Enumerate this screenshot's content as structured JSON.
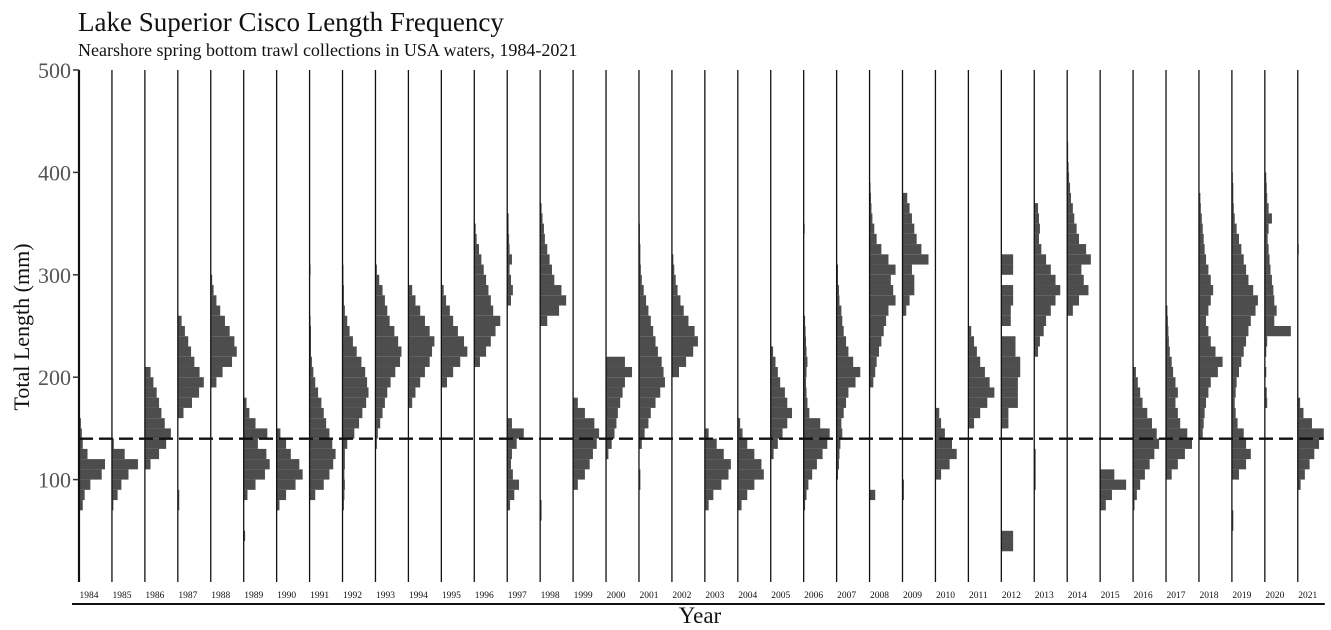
{
  "chart_data": {
    "type": "histogram",
    "title": "Lake Superior Cisco Length Frequency",
    "subtitle": "Nearshore spring bottom trawl collections in USA waters, 1984-2021",
    "xlabel": "Year",
    "ylabel": "Total Length (mm)",
    "ylim": [
      0,
      500
    ],
    "yticks": [
      100,
      200,
      300,
      400,
      500
    ],
    "reference_line": 140,
    "bin_width": 10,
    "bar_color": "#4d4d4d",
    "years": [
      {
        "year": "1984",
        "bins": {
          "70": 0.8,
          "80": 1.2,
          "90": 2.4,
          "100": 4.8,
          "110": 5.5,
          "120": 1.8,
          "130": 0.8,
          "140": 0.6,
          "150": 0.4
        }
      },
      {
        "year": "1985",
        "bins": {
          "70": 0.3,
          "80": 1.2,
          "90": 2.0,
          "100": 3.5,
          "110": 5.5,
          "120": 2.7,
          "130": 0.4
        }
      },
      {
        "year": "1986",
        "bins": {
          "110": 1.2,
          "120": 3.0,
          "130": 4.5,
          "140": 5.5,
          "150": 4.2,
          "160": 3.5,
          "170": 3.0,
          "180": 2.5,
          "190": 1.8,
          "200": 1.2
        }
      },
      {
        "year": "1987",
        "bins": {
          "70": 0.3,
          "80": 0.3,
          "160": 1.2,
          "170": 3.0,
          "180": 4.5,
          "190": 5.5,
          "200": 4.6,
          "210": 3.5,
          "220": 2.8,
          "230": 2.2,
          "240": 1.5,
          "250": 0.8
        }
      },
      {
        "year": "1988",
        "bins": {
          "190": 1.2,
          "200": 2.5,
          "210": 4.5,
          "220": 5.5,
          "230": 5.0,
          "240": 4.0,
          "250": 3.0,
          "260": 2.0,
          "270": 1.2,
          "280": 0.6,
          "290": 0.3
        }
      },
      {
        "year": "1989",
        "bins": {
          "40": 0.3,
          "80": 0.8,
          "90": 2.5,
          "100": 4.5,
          "110": 5.5,
          "120": 4.8,
          "130": 3.0,
          "140": 5.0,
          "150": 2.5,
          "160": 1.2,
          "170": 0.6
        }
      },
      {
        "year": "1990",
        "bins": {
          "70": 0.6,
          "80": 2.0,
          "90": 4.0,
          "100": 5.5,
          "110": 4.8,
          "120": 3.0,
          "130": 2.0,
          "140": 0.8
        }
      },
      {
        "year": "1991",
        "bins": {
          "80": 1.2,
          "90": 3.0,
          "100": 4.2,
          "110": 5.0,
          "120": 5.5,
          "130": 4.8,
          "140": 4.2,
          "150": 3.5,
          "160": 3.0,
          "170": 2.5,
          "180": 1.8,
          "190": 1.2,
          "200": 0.8,
          "210": 0.5,
          "220": 0.3,
          "230": 0.3,
          "240": 0.3,
          "250": 0.2,
          "300": 0.2
        }
      },
      {
        "year": "1992",
        "bins": {
          "70": 0.3,
          "80": 0.4,
          "90": 0.5,
          "100": 0.4,
          "110": 0.5,
          "120": 0.5,
          "130": 1.0,
          "140": 2.5,
          "150": 3.5,
          "160": 4.2,
          "170": 5.0,
          "180": 5.5,
          "190": 5.2,
          "200": 4.8,
          "210": 4.0,
          "220": 3.0,
          "230": 2.2,
          "240": 1.5,
          "250": 1.0,
          "260": 0.5,
          "270": 0.3,
          "280": 0.3,
          "290": 0.2,
          "300": 0.2
        }
      },
      {
        "year": "1993",
        "bins": {
          "130": 0.3,
          "140": 0.5,
          "150": 1.0,
          "160": 1.5,
          "170": 2.0,
          "180": 2.5,
          "190": 3.2,
          "200": 4.2,
          "210": 5.2,
          "220": 5.5,
          "230": 4.8,
          "240": 4.0,
          "250": 3.0,
          "260": 2.5,
          "270": 2.0,
          "280": 1.5,
          "290": 0.8,
          "300": 0.3
        }
      },
      {
        "year": "1994",
        "bins": {
          "170": 0.8,
          "180": 1.5,
          "190": 2.5,
          "200": 3.5,
          "210": 4.5,
          "220": 5.0,
          "230": 5.5,
          "240": 4.5,
          "250": 3.5,
          "260": 2.5,
          "270": 1.5,
          "280": 0.8
        }
      },
      {
        "year": "1995",
        "bins": {
          "190": 1.2,
          "200": 2.5,
          "210": 4.0,
          "220": 5.5,
          "230": 4.8,
          "240": 3.5,
          "250": 2.5,
          "260": 1.8,
          "270": 1.0,
          "280": 0.5
        }
      },
      {
        "year": "1996",
        "bins": {
          "210": 1.2,
          "220": 2.5,
          "230": 3.5,
          "240": 4.5,
          "250": 5.5,
          "260": 4.0,
          "270": 3.5,
          "280": 3.0,
          "290": 2.5,
          "300": 2.0,
          "310": 1.5,
          "320": 1.0,
          "330": 0.5,
          "340": 0.3
        }
      },
      {
        "year": "1997",
        "bins": {
          "70": 0.6,
          "80": 1.5,
          "90": 2.5,
          "100": 1.2,
          "110": 0.8,
          "120": 1.0,
          "130": 2.0,
          "140": 3.5,
          "150": 1.0,
          "270": 0.8,
          "280": 1.2,
          "290": 0.8,
          "300": 0.5,
          "310": 1.0,
          "320": 0.5,
          "330": 0.4,
          "340": 0.3,
          "350": 0.3
        }
      },
      {
        "year": "1998",
        "bins": {
          "60": 0.3,
          "70": 0.3,
          "250": 1.5,
          "260": 4.0,
          "270": 5.5,
          "280": 4.5,
          "290": 3.0,
          "300": 2.5,
          "310": 2.0,
          "320": 1.5,
          "330": 1.0,
          "340": 0.8,
          "350": 0.5,
          "360": 0.3
        }
      },
      {
        "year": "1999",
        "bins": {
          "90": 1.0,
          "100": 2.5,
          "110": 3.5,
          "120": 4.2,
          "130": 5.0,
          "140": 5.5,
          "150": 4.5,
          "160": 2.5,
          "170": 1.0
        }
      },
      {
        "year": "2000",
        "bins": {
          "120": 0.5,
          "130": 1.2,
          "140": 1.8,
          "150": 2.2,
          "160": 2.5,
          "170": 3.0,
          "180": 3.5,
          "190": 4.0,
          "200": 5.5,
          "210": 4.0
        }
      },
      {
        "year": "2001",
        "bins": {
          "90": 0.3,
          "100": 0.3,
          "130": 0.6,
          "140": 1.2,
          "150": 2.0,
          "160": 2.5,
          "170": 3.5,
          "180": 4.5,
          "190": 5.5,
          "200": 5.2,
          "210": 4.8,
          "220": 4.0,
          "230": 3.5,
          "240": 3.0,
          "250": 2.5,
          "260": 2.0,
          "270": 1.5,
          "280": 1.0,
          "290": 0.6,
          "300": 0.4,
          "310": 0.3,
          "320": 0.3,
          "330": 0.2,
          "340": 0.2
        }
      },
      {
        "year": "2002",
        "bins": {
          "200": 1.5,
          "210": 3.0,
          "220": 4.5,
          "230": 5.5,
          "240": 4.8,
          "250": 3.5,
          "260": 2.5,
          "270": 1.8,
          "280": 1.2,
          "290": 0.8,
          "300": 0.5,
          "310": 0.3
        }
      },
      {
        "year": "2003",
        "bins": {
          "70": 0.8,
          "80": 1.8,
          "90": 3.5,
          "100": 5.0,
          "110": 5.5,
          "120": 4.0,
          "130": 2.5,
          "140": 0.8
        }
      },
      {
        "year": "2004",
        "bins": {
          "70": 0.8,
          "80": 2.0,
          "90": 3.5,
          "100": 5.5,
          "110": 5.0,
          "120": 3.5,
          "130": 2.0,
          "140": 1.0,
          "150": 0.5
        }
      },
      {
        "year": "2005",
        "bins": {
          "120": 0.6,
          "130": 1.5,
          "140": 2.5,
          "150": 3.5,
          "160": 4.5,
          "170": 3.5,
          "180": 3.0,
          "190": 2.0,
          "200": 1.5,
          "210": 1.0,
          "220": 0.5
        }
      },
      {
        "year": "2006",
        "bins": {
          "70": 0.3,
          "80": 0.6,
          "90": 1.0,
          "100": 1.8,
          "110": 2.8,
          "120": 4.0,
          "130": 5.0,
          "140": 5.5,
          "150": 3.5,
          "160": 1.2,
          "170": 0.8,
          "180": 0.6,
          "190": 0.5,
          "200": 0.6,
          "210": 0.8,
          "220": 0.6,
          "230": 0.5,
          "240": 0.4,
          "250": 0.3,
          "340": 0.2
        }
      },
      {
        "year": "2007",
        "bins": {
          "100": 0.3,
          "110": 0.5,
          "120": 0.6,
          "130": 0.8,
          "140": 1.2,
          "150": 1.0,
          "160": 1.5,
          "170": 2.0,
          "180": 2.5,
          "190": 4.0,
          "200": 5.0,
          "210": 3.5,
          "220": 2.5,
          "230": 2.0,
          "240": 1.5,
          "250": 1.2,
          "260": 1.0,
          "270": 0.6,
          "280": 0.5,
          "290": 0.3,
          "300": 0.3
        }
      },
      {
        "year": "2008",
        "bins": {
          "80": 1.2,
          "190": 0.8,
          "200": 1.2,
          "210": 1.5,
          "220": 2.0,
          "230": 2.5,
          "240": 3.0,
          "250": 3.5,
          "260": 4.0,
          "270": 5.5,
          "280": 5.0,
          "290": 4.5,
          "300": 5.5,
          "310": 4.0,
          "320": 2.5,
          "330": 1.5,
          "340": 1.0,
          "350": 0.6,
          "360": 0.4,
          "370": 0.3,
          "380": 0.2
        }
      },
      {
        "year": "2009",
        "bins": {
          "80": 0.3,
          "90": 0.3,
          "260": 0.8,
          "270": 1.5,
          "280": 2.5,
          "290": 2.5,
          "300": 2.0,
          "310": 5.5,
          "320": 4.0,
          "330": 3.0,
          "340": 2.5,
          "350": 2.0,
          "360": 1.5,
          "370": 1.0
        }
      },
      {
        "year": "2010",
        "bins": {
          "100": 1.2,
          "110": 3.0,
          "120": 4.5,
          "130": 3.5,
          "140": 2.0,
          "150": 1.2,
          "160": 0.8
        }
      },
      {
        "year": "2011",
        "bins": {
          "150": 1.2,
          "160": 2.5,
          "170": 4.0,
          "180": 5.5,
          "190": 4.5,
          "200": 3.5,
          "210": 2.5,
          "220": 1.8,
          "230": 1.2,
          "240": 0.6
        }
      },
      {
        "year": "2012",
        "bins": {
          "30": 2.5,
          "40": 2.5,
          "150": 1.5,
          "160": 1.5,
          "170": 3.5,
          "180": 3.5,
          "190": 3.5,
          "200": 4.0,
          "210": 4.0,
          "220": 3.0,
          "230": 3.0,
          "250": 2.0,
          "260": 2.0,
          "270": 2.5,
          "280": 2.5,
          "300": 2.5,
          "310": 2.5
        }
      },
      {
        "year": "2013",
        "bins": {
          "90": 0.3,
          "100": 0.3,
          "110": 0.3,
          "120": 0.3,
          "220": 0.8,
          "230": 1.2,
          "240": 2.0,
          "250": 2.5,
          "260": 3.5,
          "270": 4.5,
          "280": 5.5,
          "290": 4.5,
          "300": 3.5,
          "310": 2.5,
          "320": 1.5,
          "330": 1.0,
          "340": 1.2,
          "350": 1.0,
          "360": 0.8
        }
      },
      {
        "year": "2014",
        "bins": {
          "260": 1.2,
          "270": 2.5,
          "280": 4.5,
          "290": 3.5,
          "300": 3.0,
          "310": 5.0,
          "320": 4.0,
          "330": 2.5,
          "340": 2.0,
          "350": 1.5,
          "360": 1.2,
          "370": 0.8,
          "380": 0.6,
          "390": 0.4,
          "400": 0.3,
          "410": 0.2,
          "420": 0.2
        }
      },
      {
        "year": "2015",
        "bins": {
          "70": 1.2,
          "80": 2.5,
          "90": 5.5,
          "100": 3.0
        }
      },
      {
        "year": "2016",
        "bins": {
          "70": 0.3,
          "80": 0.8,
          "90": 1.5,
          "100": 2.5,
          "110": 3.5,
          "120": 4.5,
          "130": 5.5,
          "140": 5.0,
          "150": 4.0,
          "160": 3.0,
          "170": 2.0,
          "180": 1.5,
          "190": 1.0,
          "200": 0.6
        }
      },
      {
        "year": "2017",
        "bins": {
          "100": 1.2,
          "110": 2.5,
          "120": 4.0,
          "130": 5.5,
          "140": 4.5,
          "150": 3.0,
          "160": 2.5,
          "170": 2.0,
          "180": 2.5,
          "190": 2.0,
          "200": 1.5,
          "210": 1.2,
          "220": 0.8,
          "230": 0.6,
          "240": 0.5,
          "250": 0.4,
          "260": 0.3
        }
      },
      {
        "year": "2018",
        "bins": {
          "140": 0.8,
          "150": 1.0,
          "160": 1.2,
          "170": 1.5,
          "180": 2.0,
          "190": 2.5,
          "200": 4.0,
          "210": 5.0,
          "220": 3.5,
          "230": 2.5,
          "240": 2.0,
          "250": 1.5,
          "260": 2.0,
          "270": 2.5,
          "280": 3.0,
          "290": 2.5,
          "300": 2.0,
          "310": 1.5,
          "320": 1.2,
          "330": 1.0,
          "340": 0.8,
          "350": 0.6,
          "360": 0.4,
          "370": 0.3
        }
      },
      {
        "year": "2019",
        "bins": {
          "50": 0.3,
          "60": 0.3,
          "100": 1.5,
          "110": 3.0,
          "120": 4.0,
          "130": 3.0,
          "140": 2.5,
          "150": 1.2,
          "160": 0.8,
          "170": 0.6,
          "180": 0.8,
          "190": 1.0,
          "200": 1.5,
          "210": 2.0,
          "220": 2.5,
          "230": 3.0,
          "240": 3.5,
          "250": 4.0,
          "260": 5.0,
          "270": 5.5,
          "280": 4.5,
          "290": 3.5,
          "300": 3.0,
          "310": 2.5,
          "320": 2.0,
          "330": 1.5,
          "340": 1.0,
          "350": 0.6,
          "360": 0.4,
          "370": 0.3,
          "380": 0.3,
          "390": 0.2
        }
      },
      {
        "year": "2020",
        "bins": {
          "170": 0.5,
          "180": 0.4,
          "200": 0.3,
          "220": 0.3,
          "230": 0.5,
          "240": 5.5,
          "250": 2.0,
          "260": 2.5,
          "270": 2.0,
          "280": 1.8,
          "290": 1.5,
          "300": 1.2,
          "310": 1.0,
          "320": 0.8,
          "330": 0.6,
          "340": 0.8,
          "350": 1.5,
          "360": 0.8,
          "370": 0.5,
          "380": 0.4,
          "390": 0.3
        }
      },
      {
        "year": "2021",
        "bins": {
          "90": 0.6,
          "100": 1.5,
          "110": 2.5,
          "120": 3.5,
          "130": 4.5,
          "140": 5.5,
          "150": 3.0,
          "160": 1.2,
          "170": 0.5,
          "320": 0.2
        }
      }
    ]
  }
}
